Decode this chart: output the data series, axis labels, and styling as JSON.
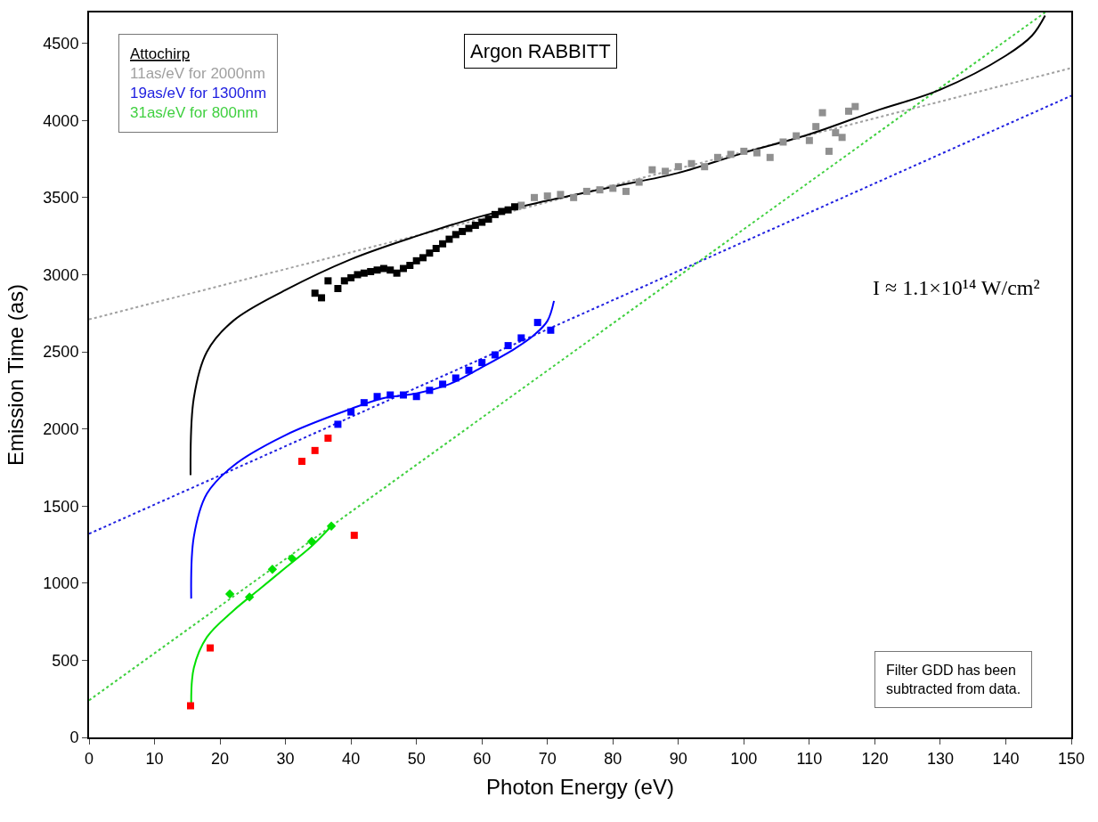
{
  "chart_data": {
    "type": "line",
    "title": "Argon RABBITT",
    "xlabel": "Photon Energy (eV)",
    "ylabel": "Emission Time (as)",
    "legend_title": "Attochirp",
    "legend": "top left",
    "xlim": [
      0,
      150
    ],
    "xticks": [
      0,
      10,
      20,
      30,
      40,
      50,
      60,
      70,
      80,
      90,
      100,
      110,
      120,
      130,
      140,
      150
    ],
    "ylim": [
      0,
      4700
    ],
    "yticks": [
      0,
      500,
      1000,
      1500,
      2000,
      2500,
      3000,
      3500,
      4000,
      4500
    ],
    "annotations": [
      "I ≈ 1.1×10¹⁴ W/cm²",
      "Filter GDD has been subtracted from data."
    ],
    "series": [
      {
        "name": "11as/eV for 2000nm",
        "type": "line",
        "line_style": "dotted",
        "color": "#a0a0a0",
        "x": [
          0,
          150
        ],
        "values": [
          2710,
          4340
        ]
      },
      {
        "name": "19as/eV for 1300nm",
        "type": "line",
        "line_style": "dotted",
        "color": "#2020e0",
        "x": [
          0,
          150
        ],
        "values": [
          1320,
          4160
        ]
      },
      {
        "name": "31as/eV for 800nm",
        "type": "line",
        "line_style": "dotted",
        "color": "#40d040",
        "x": [
          0,
          146
        ],
        "values": [
          240,
          4700
        ]
      },
      {
        "line_style": "solid",
        "color": "#000000",
        "x": [
          15.5,
          16,
          18,
          22,
          30,
          40,
          50,
          60,
          70,
          80,
          90,
          100,
          110,
          120,
          130,
          140,
          144,
          146
        ],
        "values": [
          1700,
          2200,
          2500,
          2700,
          2900,
          3100,
          3250,
          3380,
          3480,
          3570,
          3660,
          3790,
          3910,
          4060,
          4200,
          4420,
          4550,
          4680
        ]
      },
      {
        "line_style": "solid",
        "color": "#0000ff",
        "x": [
          15.6,
          16,
          18,
          22,
          30,
          40,
          45,
          50,
          55,
          60,
          65,
          68,
          70,
          71
        ],
        "values": [
          900,
          1300,
          1580,
          1760,
          1960,
          2130,
          2200,
          2230,
          2290,
          2400,
          2520,
          2610,
          2700,
          2830
        ]
      },
      {
        "line_style": "solid",
        "color": "#00e000",
        "x": [
          15.6,
          16,
          18,
          22,
          26,
          30,
          34,
          37
        ],
        "values": [
          220,
          450,
          650,
          820,
          960,
          1100,
          1240,
          1370
        ]
      },
      {
        "type": "scatter",
        "marker": "square",
        "color": "#909090",
        "x": [
          66,
          68,
          70,
          72,
          74,
          76,
          78,
          80,
          82,
          84,
          86,
          88,
          90,
          92,
          94,
          96,
          98,
          100,
          102,
          104,
          106,
          108,
          110,
          111,
          112,
          113,
          114,
          115,
          116,
          117
        ],
        "values": [
          3450,
          3500,
          3510,
          3520,
          3500,
          3540,
          3550,
          3560,
          3540,
          3600,
          3680,
          3670,
          3700,
          3720,
          3700,
          3760,
          3780,
          3800,
          3790,
          3760,
          3860,
          3900,
          3870,
          3960,
          4050,
          3800,
          3920,
          3890,
          4060,
          4090
        ]
      },
      {
        "type": "scatter",
        "marker": "square",
        "color": "#000000",
        "x": [
          34.5,
          35.5,
          36.5,
          38,
          39,
          40,
          41,
          42,
          43,
          44,
          45,
          46,
          47,
          48,
          49,
          50,
          51,
          52,
          53,
          54,
          55,
          56,
          57,
          58,
          59,
          60,
          61,
          62,
          63,
          64,
          65
        ],
        "values": [
          2880,
          2850,
          2960,
          2910,
          2960,
          2980,
          3000,
          3010,
          3020,
          3030,
          3040,
          3030,
          3010,
          3040,
          3060,
          3090,
          3110,
          3140,
          3170,
          3200,
          3230,
          3260,
          3280,
          3300,
          3320,
          3340,
          3360,
          3390,
          3410,
          3420,
          3440
        ]
      },
      {
        "type": "scatter",
        "marker": "square",
        "color": "#0000ff",
        "x": [
          38,
          40,
          42,
          44,
          46,
          48,
          50,
          52,
          54,
          56,
          58,
          60,
          62,
          64,
          66,
          68.5,
          70.5
        ],
        "values": [
          2030,
          2110,
          2170,
          2210,
          2220,
          2220,
          2210,
          2250,
          2290,
          2330,
          2380,
          2430,
          2480,
          2540,
          2590,
          2690,
          2640
        ]
      },
      {
        "type": "scatter",
        "marker": "diamond",
        "color": "#00e000",
        "x": [
          21.5,
          24.5,
          28,
          31,
          34,
          37
        ],
        "values": [
          930,
          910,
          1090,
          1160,
          1270,
          1370
        ]
      },
      {
        "type": "scatter",
        "marker": "square",
        "color": "#ff0000",
        "x": [
          15.5,
          18.5,
          32.5,
          34.5,
          36.5,
          40.5
        ],
        "values": [
          205,
          580,
          1790,
          1860,
          1940,
          1310
        ]
      }
    ]
  }
}
